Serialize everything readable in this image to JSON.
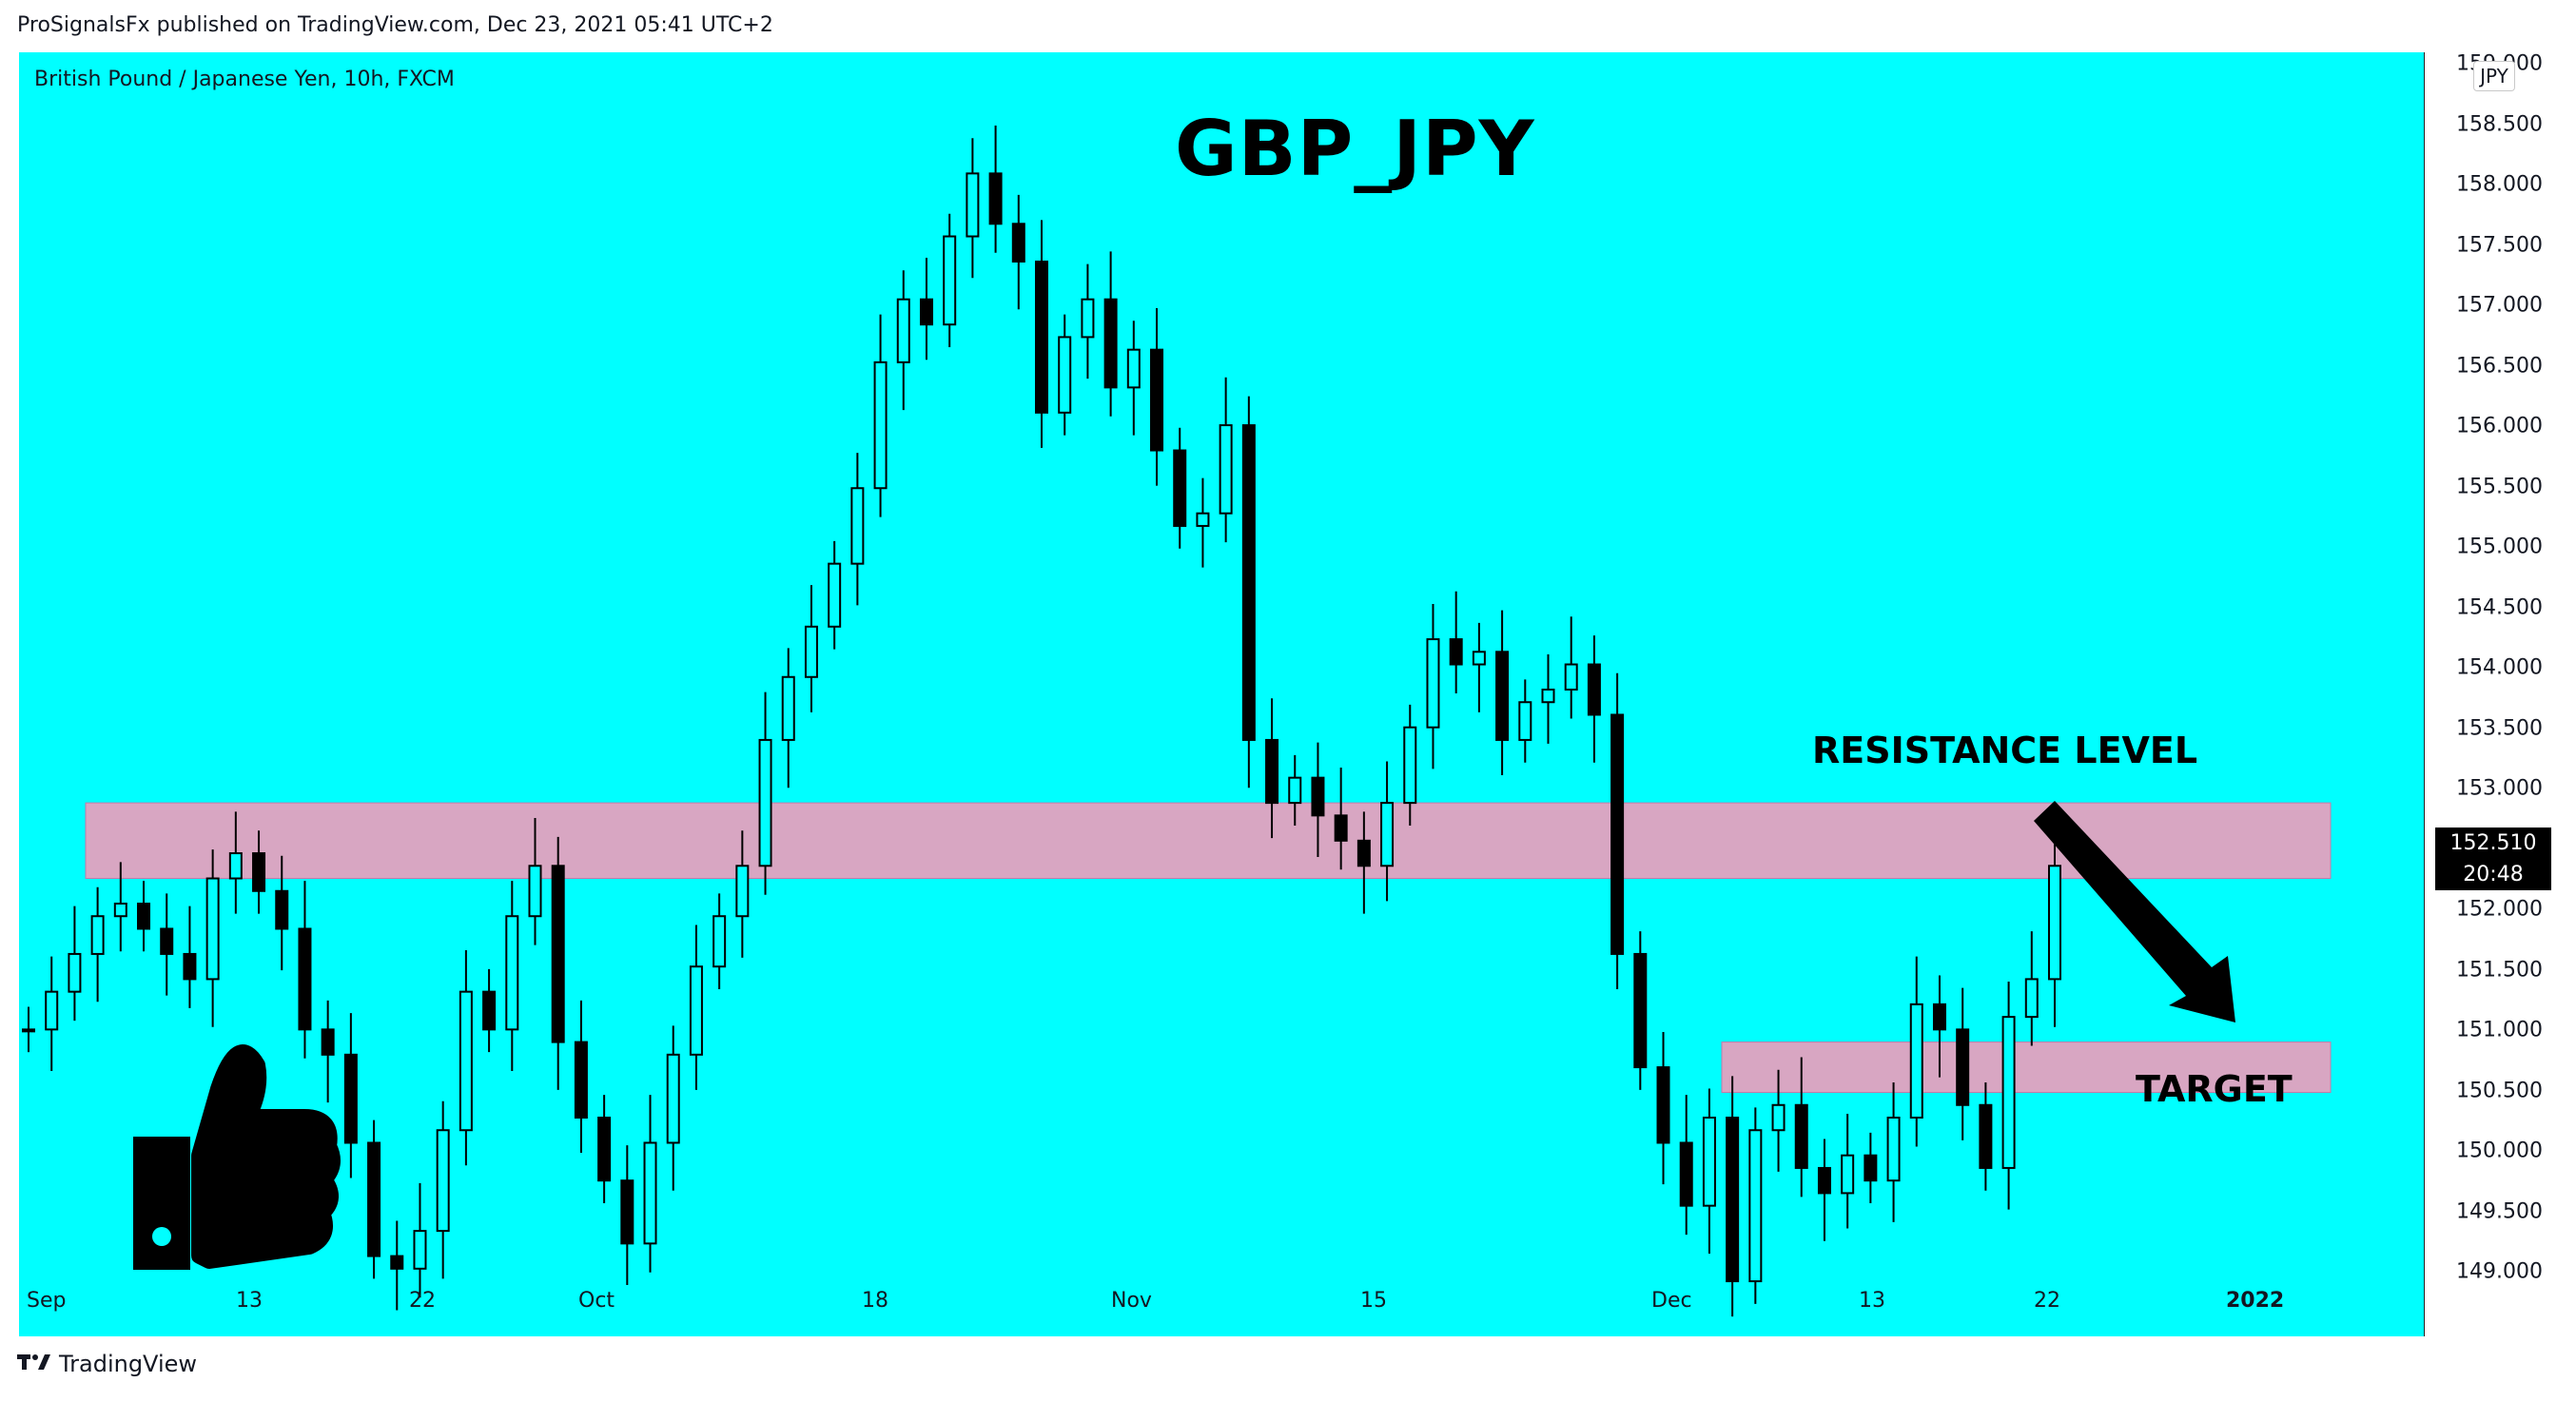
{
  "header": {
    "publisher_line": "ProSignalsFx published on TradingView.com, Dec 23, 2021 05:41 UTC+2"
  },
  "chart": {
    "symbol_line": "British Pound / Japanese Yen, 10h, FXCM",
    "title": "GBP_JPY",
    "resistance_label": "RESISTANCE LEVEL",
    "target_label": "TARGET",
    "currency_badge": "JPY",
    "last_price": "152.510",
    "countdown": "20:48"
  },
  "y_axis": {
    "ticks": [
      "159.000",
      "158.500",
      "158.000",
      "157.500",
      "157.000",
      "156.500",
      "156.000",
      "155.500",
      "155.000",
      "154.500",
      "154.000",
      "153.500",
      "153.000",
      "152.000",
      "151.500",
      "151.000",
      "150.500",
      "150.000",
      "149.500",
      "149.000"
    ]
  },
  "x_axis": {
    "ticks": [
      "Sep",
      "13",
      "22",
      "Oct",
      "18",
      "Nov",
      "15",
      "Dec",
      "13",
      "22",
      "2022"
    ]
  },
  "footer": {
    "brand": "TradingView"
  },
  "colors": {
    "background": "#00ffff",
    "zone": "#d8a6c2",
    "candle": "#000000"
  },
  "chart_data": {
    "type": "candlestick",
    "title": "GBP_JPY",
    "ylim": [
      148.8,
      159.0
    ],
    "timeframe": "10h",
    "series": [
      {
        "name": "British Pound / Japanese Yen",
        "values": [
          151.2,
          151.5,
          151.8,
          152.1,
          152.2,
          152.0,
          151.8,
          151.6,
          152.4,
          152.6,
          152.3,
          152.0,
          151.2,
          151.0,
          150.3,
          149.4,
          149.3,
          149.6,
          150.4,
          151.5,
          151.2,
          152.1,
          152.5,
          151.1,
          150.5,
          150.0,
          149.5,
          150.3,
          151.0,
          151.7,
          152.1,
          152.5,
          153.5,
          154.0,
          154.4,
          154.9,
          155.5,
          156.5,
          157.0,
          156.8,
          157.5,
          158.0,
          157.6,
          157.3,
          156.1,
          156.7,
          157.0,
          156.3,
          156.6,
          155.8,
          155.2,
          155.3,
          156.0,
          153.5,
          153.0,
          153.2,
          152.9,
          152.7,
          152.5,
          153.0,
          153.6,
          154.3,
          154.1,
          154.2,
          153.5,
          153.8,
          153.9,
          154.1,
          153.7,
          151.8,
          150.9,
          150.3,
          149.8,
          150.5,
          149.2,
          150.4,
          150.6,
          150.1,
          149.9,
          150.2,
          150.0,
          150.5,
          151.4,
          151.2,
          150.6,
          150.1,
          151.3,
          151.6,
          152.5
        ]
      }
    ],
    "zones": [
      {
        "name": "RESISTANCE LEVEL",
        "low": 152.4,
        "high": 153.0
      },
      {
        "name": "TARGET",
        "low": 150.7,
        "high": 151.1
      }
    ]
  }
}
